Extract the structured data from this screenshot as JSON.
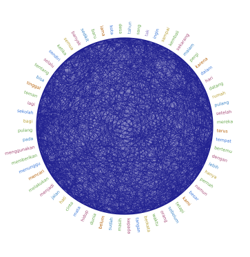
{
  "diagram": {
    "type": "circular-network",
    "edge_color": "#1a1a8c",
    "edge_density": "very high",
    "nodes": [
      {
        "label": "tahun",
        "color": "#5b8fc9"
      },
      {
        "label": "sang",
        "color": "#6aa84f"
      },
      {
        "label": "tak",
        "color": "#8e7cc3"
      },
      {
        "label": "ingin",
        "color": "#3c78d8"
      },
      {
        "label": "sampai",
        "color": "#b8a038"
      },
      {
        "label": "kembali",
        "color": "#6aa84f"
      },
      {
        "label": "sekarang",
        "color": "#a64d79"
      },
      {
        "label": "malam",
        "color": "#3d85c6"
      },
      {
        "label": "pergi",
        "color": "#6aa84f"
      },
      {
        "label": "karena",
        "color": "#b45f06"
      },
      {
        "label": "dalam",
        "color": "#3c78d8"
      },
      {
        "label": "hari",
        "color": "#a64d79"
      },
      {
        "label": "datang",
        "color": "#6aa84f"
      },
      {
        "label": "rumah",
        "color": "#b8a038"
      },
      {
        "label": "pulang",
        "color": "#3d85c6"
      },
      {
        "label": "setelah",
        "color": "#a64d79"
      },
      {
        "label": "mereka",
        "color": "#6aa84f"
      },
      {
        "label": "terus",
        "color": "#b45f06"
      },
      {
        "label": "tempat",
        "color": "#3c78d8"
      },
      {
        "label": "bertemu",
        "color": "#6aa84f"
      },
      {
        "label": "dengan",
        "color": "#a64d79"
      },
      {
        "label": "lebih",
        "color": "#3d85c6"
      },
      {
        "label": "hanya",
        "color": "#b8a038"
      },
      {
        "label": "pernah",
        "color": "#6aa84f"
      },
      {
        "label": "namun",
        "color": "#a64d79"
      },
      {
        "label": "besar",
        "color": "#3c78d8"
      },
      {
        "label": "kami",
        "color": "#b45f06"
      },
      {
        "label": "tetapi",
        "color": "#6aa84f"
      },
      {
        "label": "sebelum",
        "color": "#3d85c6"
      },
      {
        "label": "orang",
        "color": "#a64d79"
      },
      {
        "label": "waktu",
        "color": "#6aa84f"
      },
      {
        "label": "berkata",
        "color": "#b8a038"
      },
      {
        "label": "tangan",
        "color": "#3c78d8"
      },
      {
        "label": "kepada",
        "color": "#a64d79"
      },
      {
        "label": "masih",
        "color": "#6aa84f"
      },
      {
        "label": "sudah",
        "color": "#3d85c6"
      },
      {
        "label": "belum",
        "color": "#b45f06"
      },
      {
        "label": "dunia",
        "color": "#6aa84f"
      },
      {
        "label": "hidup",
        "color": "#a64d79"
      },
      {
        "label": "mata",
        "color": "#3c78d8"
      },
      {
        "label": "cinta",
        "color": "#6aa84f"
      },
      {
        "label": "hati",
        "color": "#b8a038"
      },
      {
        "label": "jalan",
        "color": "#3d85c6"
      },
      {
        "label": "menjadi",
        "color": "#a64d79"
      },
      {
        "label": "melakukan",
        "color": "#6aa84f"
      },
      {
        "label": "mencari",
        "color": "#b45f06"
      },
      {
        "label": "menunggu",
        "color": "#3c78d8"
      },
      {
        "label": "memberikan",
        "color": "#6aa84f"
      },
      {
        "label": "menggunakan",
        "color": "#a64d79"
      },
      {
        "label": "pada",
        "color": "#3d85c6"
      },
      {
        "label": "pulang",
        "color": "#6aa84f"
      },
      {
        "label": "bagi",
        "color": "#b8a038"
      },
      {
        "label": "sekolah",
        "color": "#3c78d8"
      },
      {
        "label": "lagi",
        "color": "#a64d79"
      },
      {
        "label": "teman",
        "color": "#6aa84f"
      },
      {
        "label": "tinggal",
        "color": "#b45f06"
      },
      {
        "label": "bisa",
        "color": "#3d85c6"
      },
      {
        "label": "tentang",
        "color": "#6aa84f"
      },
      {
        "label": "selalu",
        "color": "#a64d79"
      },
      {
        "label": "sendiri",
        "color": "#3c78d8"
      },
      {
        "label": "ketika",
        "color": "#6aa84f"
      },
      {
        "label": "semua",
        "color": "#b8a038"
      },
      {
        "label": "banyak",
        "color": "#a64d79"
      },
      {
        "label": "sedikit",
        "color": "#3d85c6"
      },
      {
        "label": "baru",
        "color": "#6aa84f"
      },
      {
        "label": "lama",
        "color": "#b45f06"
      },
      {
        "label": "kota",
        "color": "#3c78d8"
      },
      {
        "label": "desa",
        "color": "#6aa84f"
      }
    ]
  }
}
